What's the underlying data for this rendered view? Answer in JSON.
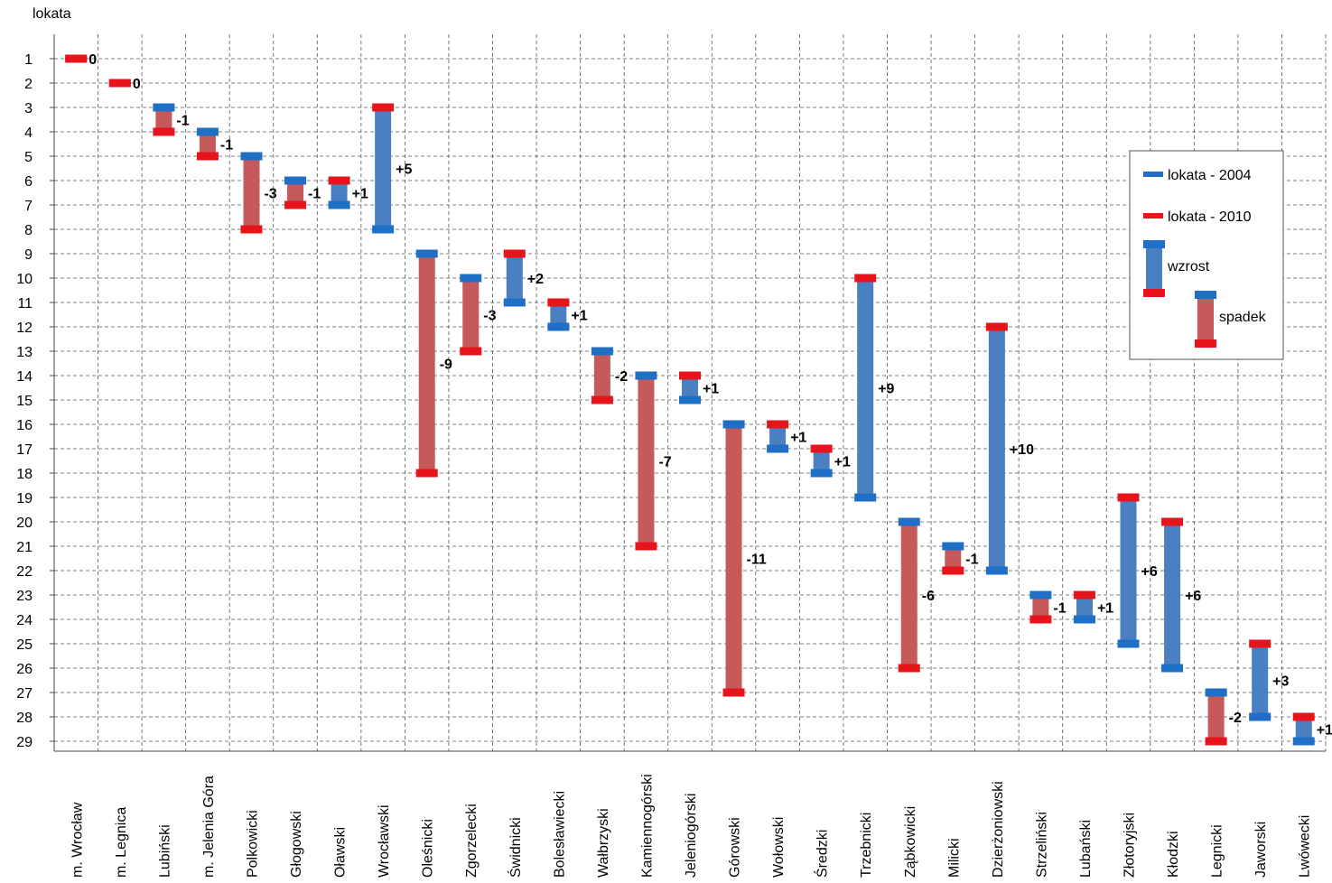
{
  "chart_data": {
    "type": "floating-bar",
    "ylabel": "lokata",
    "y_inverted": true,
    "ylim": [
      1,
      29
    ],
    "grid": true,
    "legend_position": "right",
    "categories": [
      "m. Wrocław",
      "m. Legnica",
      "Lubiński",
      "m. Jelenia Góra",
      "Polkowicki",
      "Głogowski",
      "Oławski",
      "Wrocławski",
      "Oleśnicki",
      "Zgorzelecki",
      "Świdnicki",
      "Bolesławiecki",
      "Wałbrzyski",
      "Kamiennogórski",
      "Jeleniogórski",
      "Górowski",
      "Wołowski",
      "Średzki",
      "Trzebnicki",
      "Ząbkowicki",
      "Milicki",
      "Dzierżoniowski",
      "Strzeliński",
      "Lubański",
      "Złotoryjski",
      "Kłodzki",
      "Legnicki",
      "Jaworski",
      "Lwówecki"
    ],
    "series": [
      {
        "name": "lokata - 2004",
        "color": "#1f6fc6",
        "values": [
          1,
          2,
          3,
          4,
          5,
          6,
          7,
          8,
          9,
          10,
          11,
          12,
          13,
          14,
          15,
          16,
          17,
          18,
          19,
          20,
          21,
          22,
          23,
          24,
          25,
          26,
          27,
          28,
          29
        ]
      },
      {
        "name": "lokata - 2010",
        "color": "#e8141c",
        "values": [
          1,
          2,
          4,
          5,
          8,
          7,
          6,
          3,
          18,
          13,
          9,
          11,
          15,
          21,
          14,
          27,
          16,
          17,
          10,
          26,
          22,
          12,
          24,
          23,
          19,
          20,
          29,
          25,
          28
        ]
      }
    ],
    "labels": [
      "0",
      "0",
      "-1",
      "-1",
      "-3",
      "-1",
      "+1",
      "+5",
      "-9",
      "-3",
      "+2",
      "+1",
      "-2",
      "-7",
      "+1",
      "-11",
      "+1",
      "+1",
      "+9",
      "-6",
      "-1",
      "+10",
      "-1",
      "+1",
      "+6",
      "+6",
      "-2",
      "+3",
      "+1"
    ],
    "legend": {
      "items": [
        "lokata - 2004",
        "lokata - 2010",
        "wzrost",
        "spadek"
      ],
      "colors": {
        "rise": "#4a7fc1",
        "fall": "#c65a5a"
      }
    }
  }
}
